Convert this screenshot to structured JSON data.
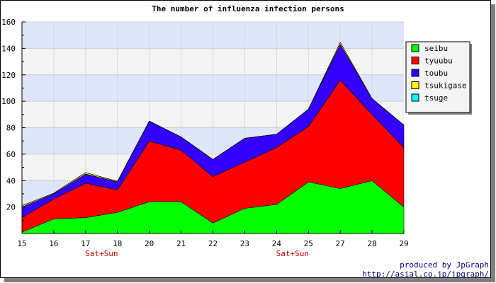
{
  "chart_data": {
    "type": "area",
    "stacked": true,
    "title": "The number of influenza infection persons",
    "x": [
      "15",
      "16",
      "17",
      "18",
      "20",
      "21",
      "22",
      "23",
      "24",
      "25",
      "27",
      "28",
      "29"
    ],
    "weekend_labels": [
      {
        "after": "17",
        "text": "Sat+Sun"
      },
      {
        "after": "24",
        "text": "Sat+Sun"
      }
    ],
    "ylim": [
      0,
      160
    ],
    "yticks": [
      20,
      40,
      60,
      80,
      100,
      120,
      140,
      160
    ],
    "legend_position": "right",
    "series": [
      {
        "name": "seibu",
        "color": "#00ff00",
        "values": [
          1,
          11,
          12,
          16,
          24,
          24,
          8,
          19,
          22,
          39,
          34,
          40,
          20
        ]
      },
      {
        "name": "tyuubu",
        "color": "#ff0000",
        "values": [
          11,
          15,
          26,
          17,
          46,
          39,
          35,
          35,
          43,
          42,
          82,
          50,
          45
        ]
      },
      {
        "name": "toubu",
        "color": "#3300ff",
        "values": [
          8,
          4,
          7,
          6,
          15,
          10,
          13,
          18,
          10,
          13,
          27,
          12,
          17
        ]
      },
      {
        "name": "tsukigase",
        "color": "#ffff00",
        "values": [
          1,
          0.5,
          1,
          0.5,
          0,
          0,
          0,
          0,
          0,
          0,
          1.5,
          0,
          0
        ]
      },
      {
        "name": "tsuge",
        "color": "#00ffff",
        "values": [
          0,
          0,
          0,
          0,
          0,
          0,
          0,
          0,
          0,
          0,
          0,
          0,
          0
        ]
      }
    ]
  },
  "credit": {
    "line1": "produced by JpGraph",
    "line2": "http://asial.co.jp/jpgraph/"
  }
}
